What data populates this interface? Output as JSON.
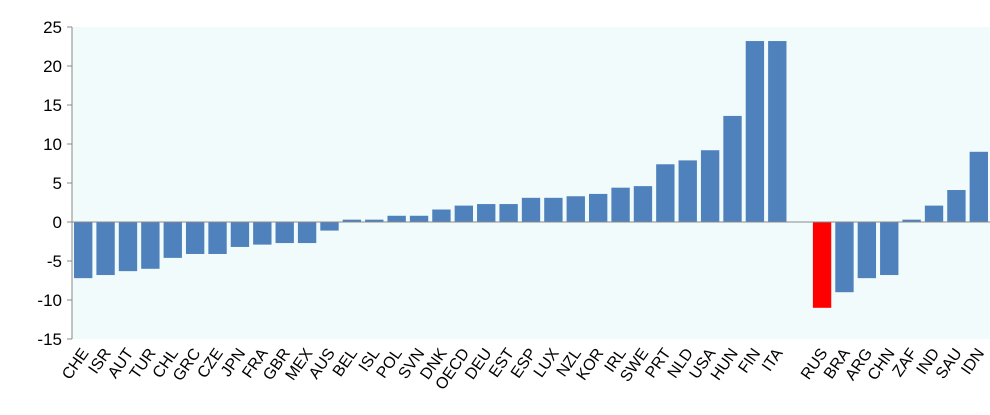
{
  "chart_data": {
    "type": "bar",
    "categories": [
      "CHE",
      "ISR",
      "AUT",
      "TUR",
      "CHL",
      "GRC",
      "CZE",
      "JPN",
      "FRA",
      "GBR",
      "MEX",
      "AUS",
      "BEL",
      "ISL",
      "POL",
      "SVN",
      "DNK",
      "OECD",
      "DEU",
      "EST",
      "ESP",
      "LUX",
      "NZL",
      "KOR",
      "IRL",
      "SWE",
      "PRT",
      "NLD",
      "USA",
      "HUN",
      "FIN",
      "ITA",
      "",
      "RUS",
      "BRA",
      "ARG",
      "CHN",
      "ZAF",
      "IND",
      "SAU",
      "IDN"
    ],
    "values": [
      -7.2,
      -6.8,
      -6.3,
      -6.0,
      -4.6,
      -4.1,
      -4.1,
      -3.2,
      -2.9,
      -2.7,
      -2.7,
      -1.1,
      0.3,
      0.3,
      0.8,
      0.8,
      1.6,
      2.1,
      2.3,
      2.3,
      3.1,
      3.1,
      3.3,
      3.6,
      4.4,
      4.6,
      7.4,
      7.9,
      9.2,
      13.6,
      23.2,
      23.2,
      null,
      -11.0,
      -9.0,
      -7.2,
      -6.8,
      0.3,
      2.1,
      4.1,
      9.0
    ],
    "highlight": [
      "RUS"
    ],
    "colors": {
      "bar": "#4f81bd",
      "highlight": "#ff0000",
      "plot_bg": "#f2fbfb"
    },
    "ylim": [
      -15,
      25
    ],
    "yticks": [
      25,
      20,
      15,
      10,
      5,
      0,
      -5,
      -10,
      -15
    ],
    "title": "",
    "xlabel": "",
    "ylabel": "",
    "grid": false,
    "legend": "none"
  }
}
